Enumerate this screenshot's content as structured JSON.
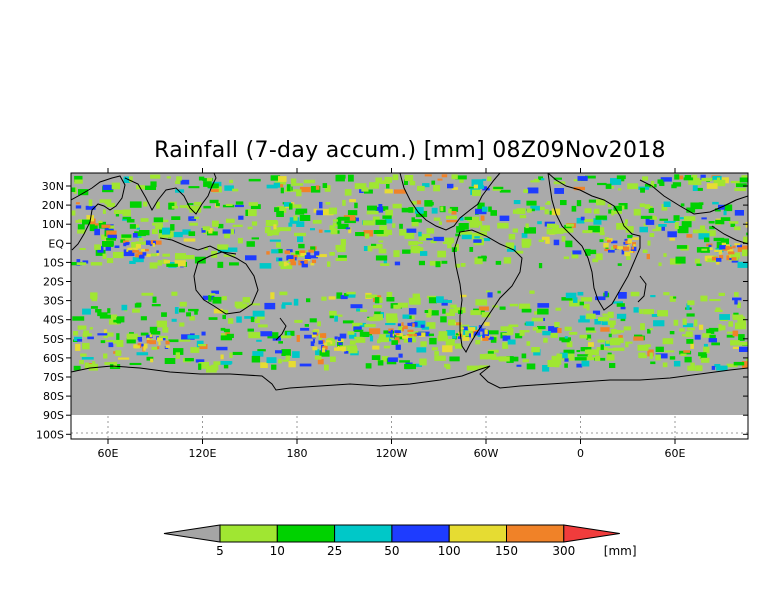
{
  "map": {
    "title": "Rainfall (7-day accum.) [mm] 08Z09Nov2018",
    "lat_labels": [
      "30N",
      "20N",
      "10N",
      "EQ",
      "10S",
      "20S",
      "30S",
      "40S",
      "50S",
      "60S",
      "70S",
      "80S",
      "90S",
      "100S"
    ],
    "lon_labels": [
      "60E",
      "120E",
      "180",
      "120W",
      "60W",
      "0",
      "60E"
    ],
    "colors": {
      "no_rain": "#aaaaaa",
      "ocean_gap": "#ffffff",
      "coast": "#000000"
    }
  },
  "colorbar": {
    "unit": "[mm]",
    "labels": [
      "5",
      "10",
      "25",
      "50",
      "100",
      "150",
      "300"
    ],
    "colors": [
      "#a5a5a5",
      "#a0e632",
      "#00d200",
      "#00c8c8",
      "#1e3cff",
      "#e6dc32",
      "#f08228",
      "#f03c3c"
    ]
  }
}
